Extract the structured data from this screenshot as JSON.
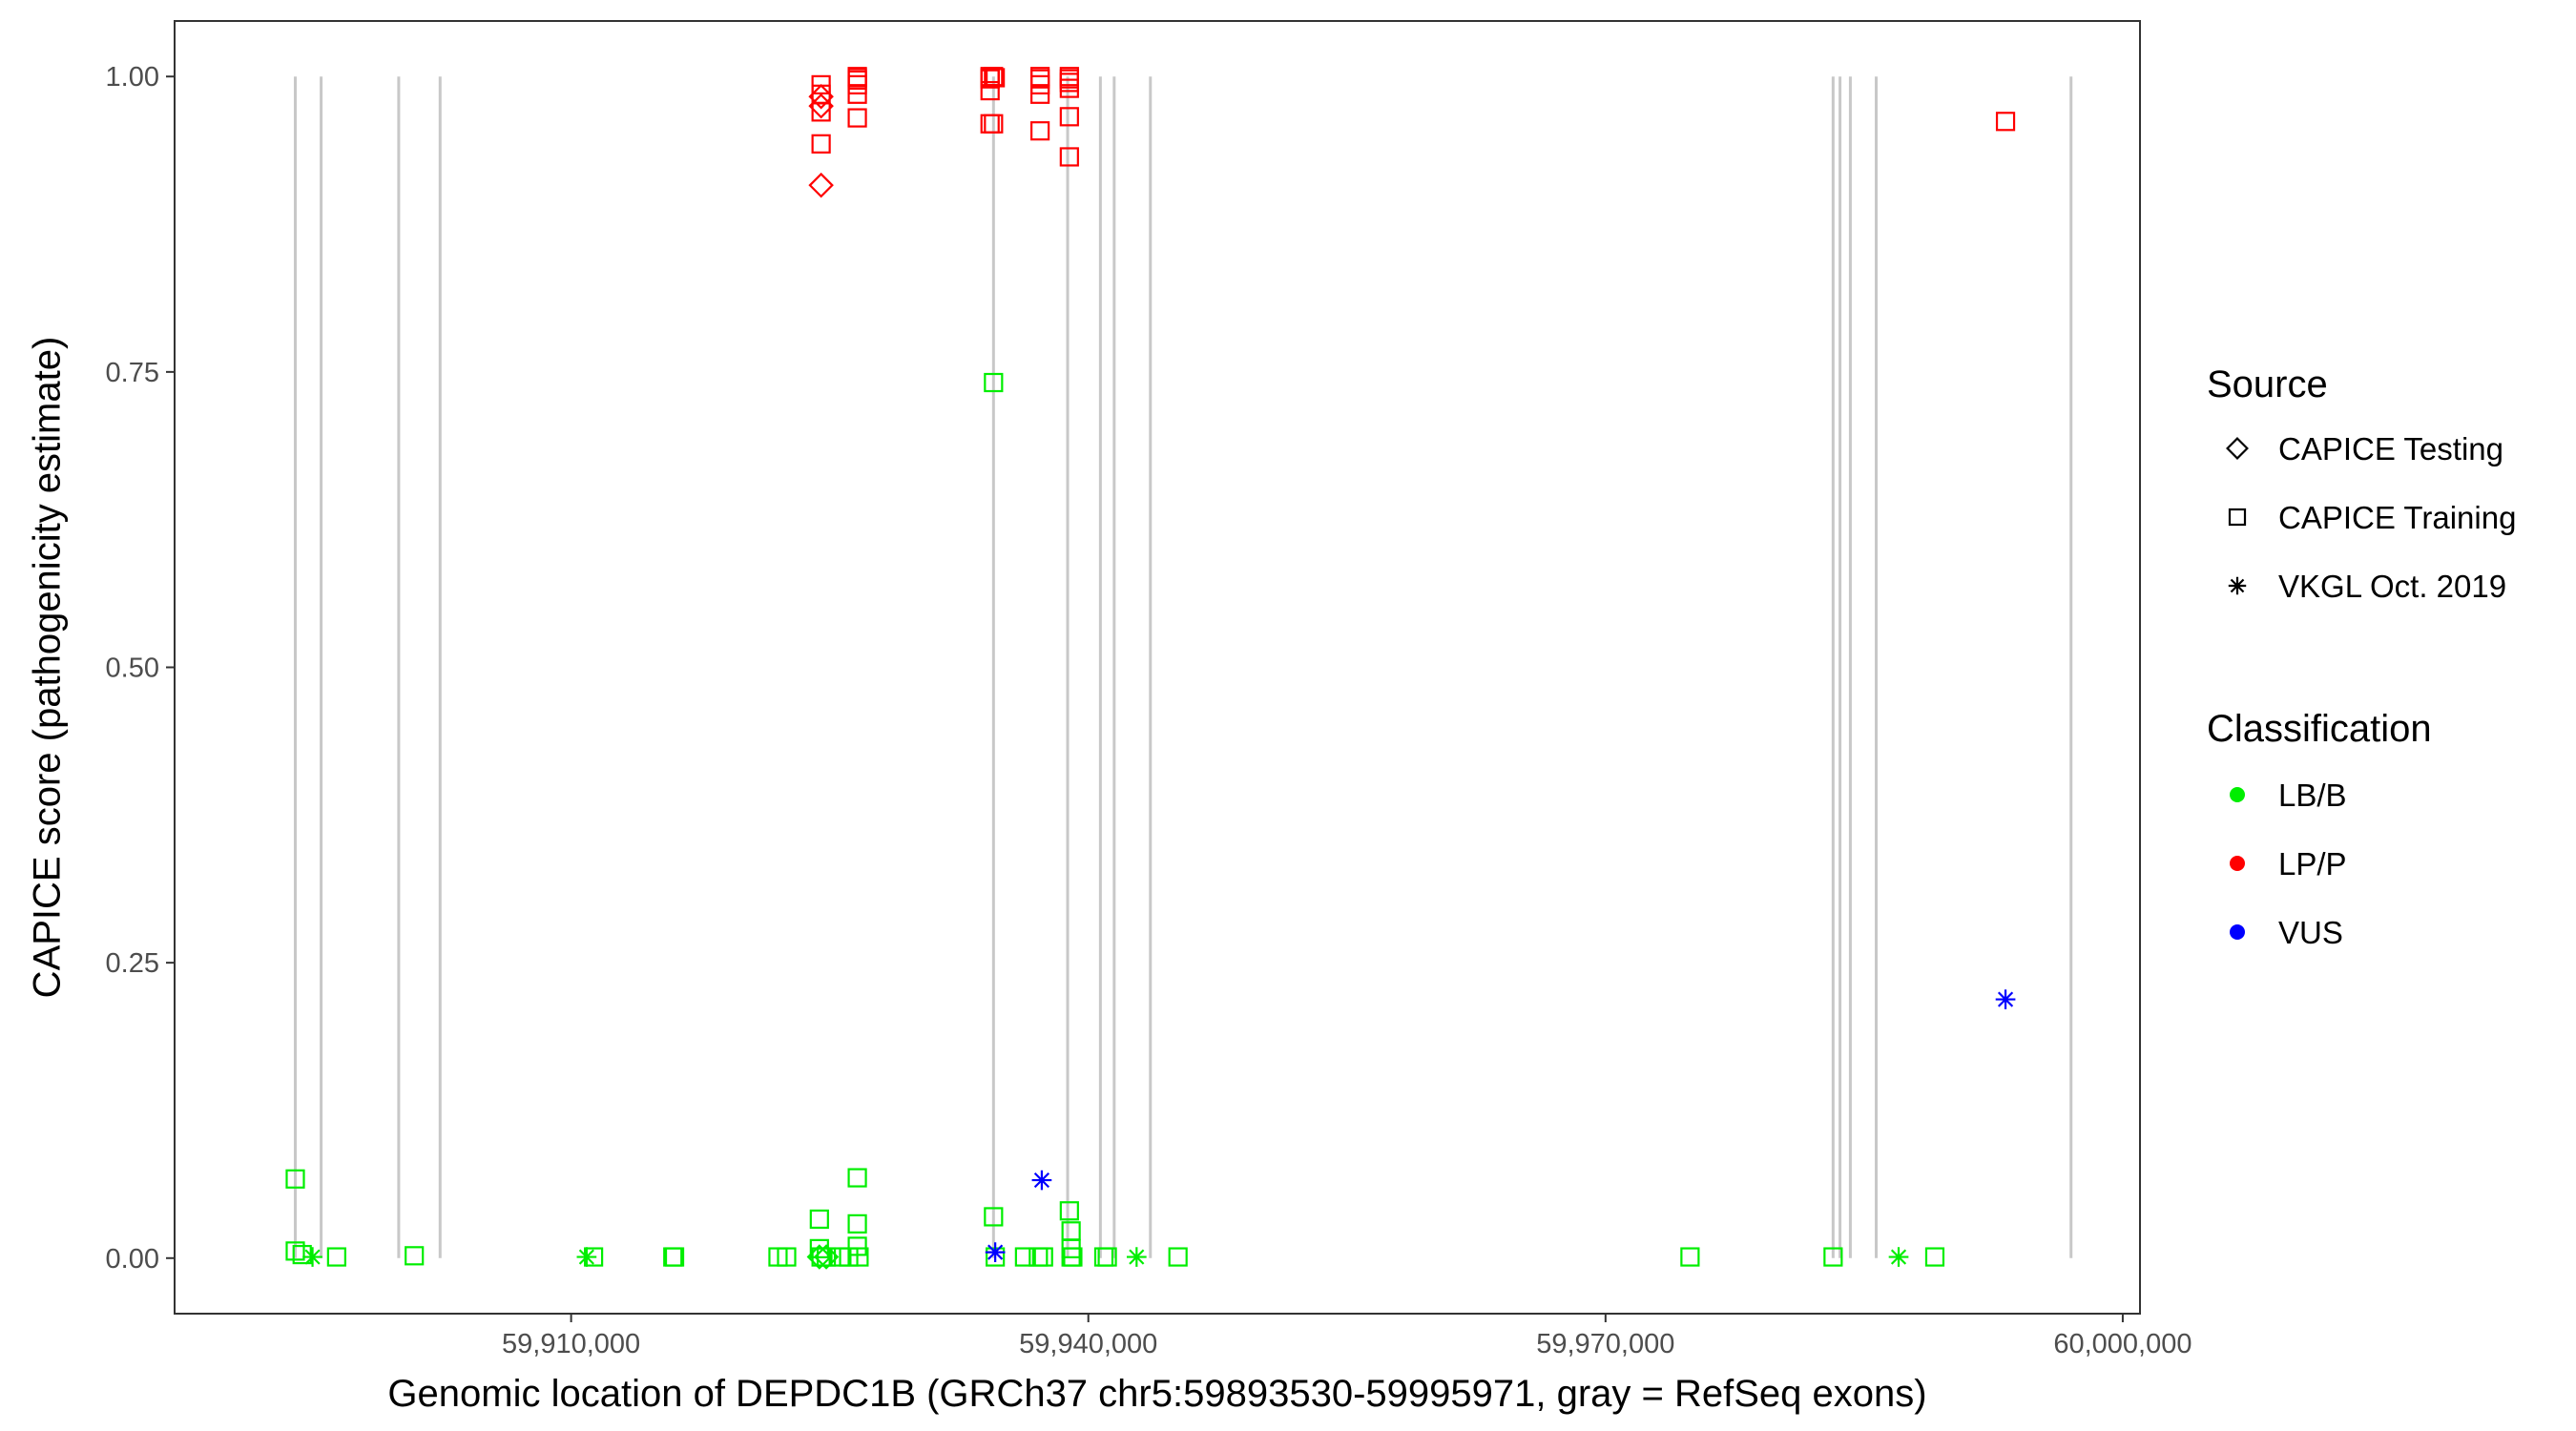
{
  "chart_data": {
    "type": "scatter",
    "xlabel": "Genomic location of DEPDC1B (GRCh37 chr5:59893530-59995971, gray = RefSeq exons)",
    "ylabel": "CAPICE score (pathogenicity estimate)",
    "xlim": [
      59887000,
      60001000
    ],
    "ylim": [
      -0.047,
      1.047
    ],
    "x_ticks": [
      59910000,
      59940000,
      59970000,
      60000000
    ],
    "x_tick_labels": [
      "59,910,000",
      "59,940,000",
      "59,970,000",
      "60,000,000"
    ],
    "y_ticks": [
      0,
      0.25,
      0.5,
      0.75,
      1
    ],
    "y_tick_labels": [
      "0.00",
      "0.25",
      "0.50",
      "0.75",
      "1.00"
    ],
    "grid": false,
    "exon_color": "#c8c8c8",
    "exons": [
      59894000,
      59895500,
      59900000,
      59902400,
      59934500,
      59938800,
      59940700,
      59941500,
      59943600,
      59983200,
      59983600,
      59984200,
      59985700,
      59997000
    ],
    "legend": {
      "placement": "right",
      "source": {
        "title": "Source",
        "entries": [
          {
            "label": "CAPICE Testing",
            "shape": "diamond"
          },
          {
            "label": "CAPICE Training",
            "shape": "square"
          },
          {
            "label": "VKGL Oct. 2019",
            "shape": "asterisk"
          }
        ]
      },
      "classification": {
        "title": "Classification",
        "entries": [
          {
            "label": "LB/B",
            "color": "#00ee00"
          },
          {
            "label": "LP/P",
            "color": "#ff0000"
          },
          {
            "label": "VUS",
            "color": "#0000ff"
          }
        ]
      }
    },
    "series": [
      {
        "source": "CAPICE Testing",
        "classification": "LP/P",
        "x": [
          59924500,
          59924500,
          59924500
        ],
        "y": [
          0.908,
          0.975,
          0.983
        ]
      },
      {
        "source": "CAPICE Testing",
        "classification": "LB/B",
        "x": [
          59924400,
          59924800
        ],
        "y": [
          0.001,
          0.001
        ]
      },
      {
        "source": "CAPICE Training",
        "classification": "LP/P",
        "x": [
          59924500,
          59924500,
          59924500,
          59924500,
          59926600,
          59926600,
          59926600,
          59926600,
          59926600,
          59926600,
          59934300,
          59934300,
          59934300,
          59934300,
          59934300,
          59934500,
          59934500,
          59934600,
          59937200,
          59937200,
          59937200,
          59937200,
          59937200,
          59938900,
          59938900,
          59938900,
          59938900,
          59938900,
          59938900,
          59993200
        ],
        "y": [
          0.943,
          0.97,
          0.985,
          0.993,
          0.965,
          0.985,
          0.993,
          0.997,
          1.0,
          0.999,
          0.96,
          0.988,
          0.998,
          1.0,
          0.999,
          0.96,
          1.0,
          0.999,
          0.954,
          0.985,
          0.993,
          0.998,
          1.0,
          0.932,
          0.966,
          0.99,
          0.995,
          0.998,
          1.0,
          0.962
        ]
      },
      {
        "source": "CAPICE Training",
        "classification": "LB/B",
        "x": [
          59894000,
          59894000,
          59894400,
          59896400,
          59900900,
          59911300,
          59915900,
          59916000,
          59922000,
          59922500,
          59924400,
          59924400,
          59924500,
          59924800,
          59925600,
          59926100,
          59926600,
          59926600,
          59926600,
          59926700,
          59934500,
          59934500,
          59934600,
          59936300,
          59937100,
          59937400,
          59938900,
          59939000,
          59939000,
          59939000,
          59939100,
          59940900,
          59941100,
          59945200,
          59974900,
          59983200,
          59989100
        ],
        "y": [
          0.067,
          0.006,
          0.003,
          0.001,
          0.002,
          0.001,
          0.001,
          0.001,
          0.001,
          0.001,
          0.033,
          0.008,
          0.001,
          0.001,
          0.001,
          0.001,
          0.068,
          0.029,
          0.01,
          0.001,
          0.741,
          0.035,
          0.001,
          0.001,
          0.001,
          0.001,
          0.04,
          0.023,
          0.008,
          0.001,
          0.001,
          0.001,
          0.001,
          0.001,
          0.001,
          0.001,
          0.001
        ]
      },
      {
        "source": "VKGL Oct. 2019",
        "classification": "VUS",
        "x": [
          59934600,
          59937300,
          59993200
        ],
        "y": [
          0.005,
          0.066,
          0.219
        ]
      },
      {
        "source": "VKGL Oct. 2019",
        "classification": "LB/B",
        "x": [
          59895000,
          59910900,
          59942800,
          59987000
        ],
        "y": [
          0.001,
          0.001,
          0.001,
          0.001
        ]
      }
    ]
  }
}
